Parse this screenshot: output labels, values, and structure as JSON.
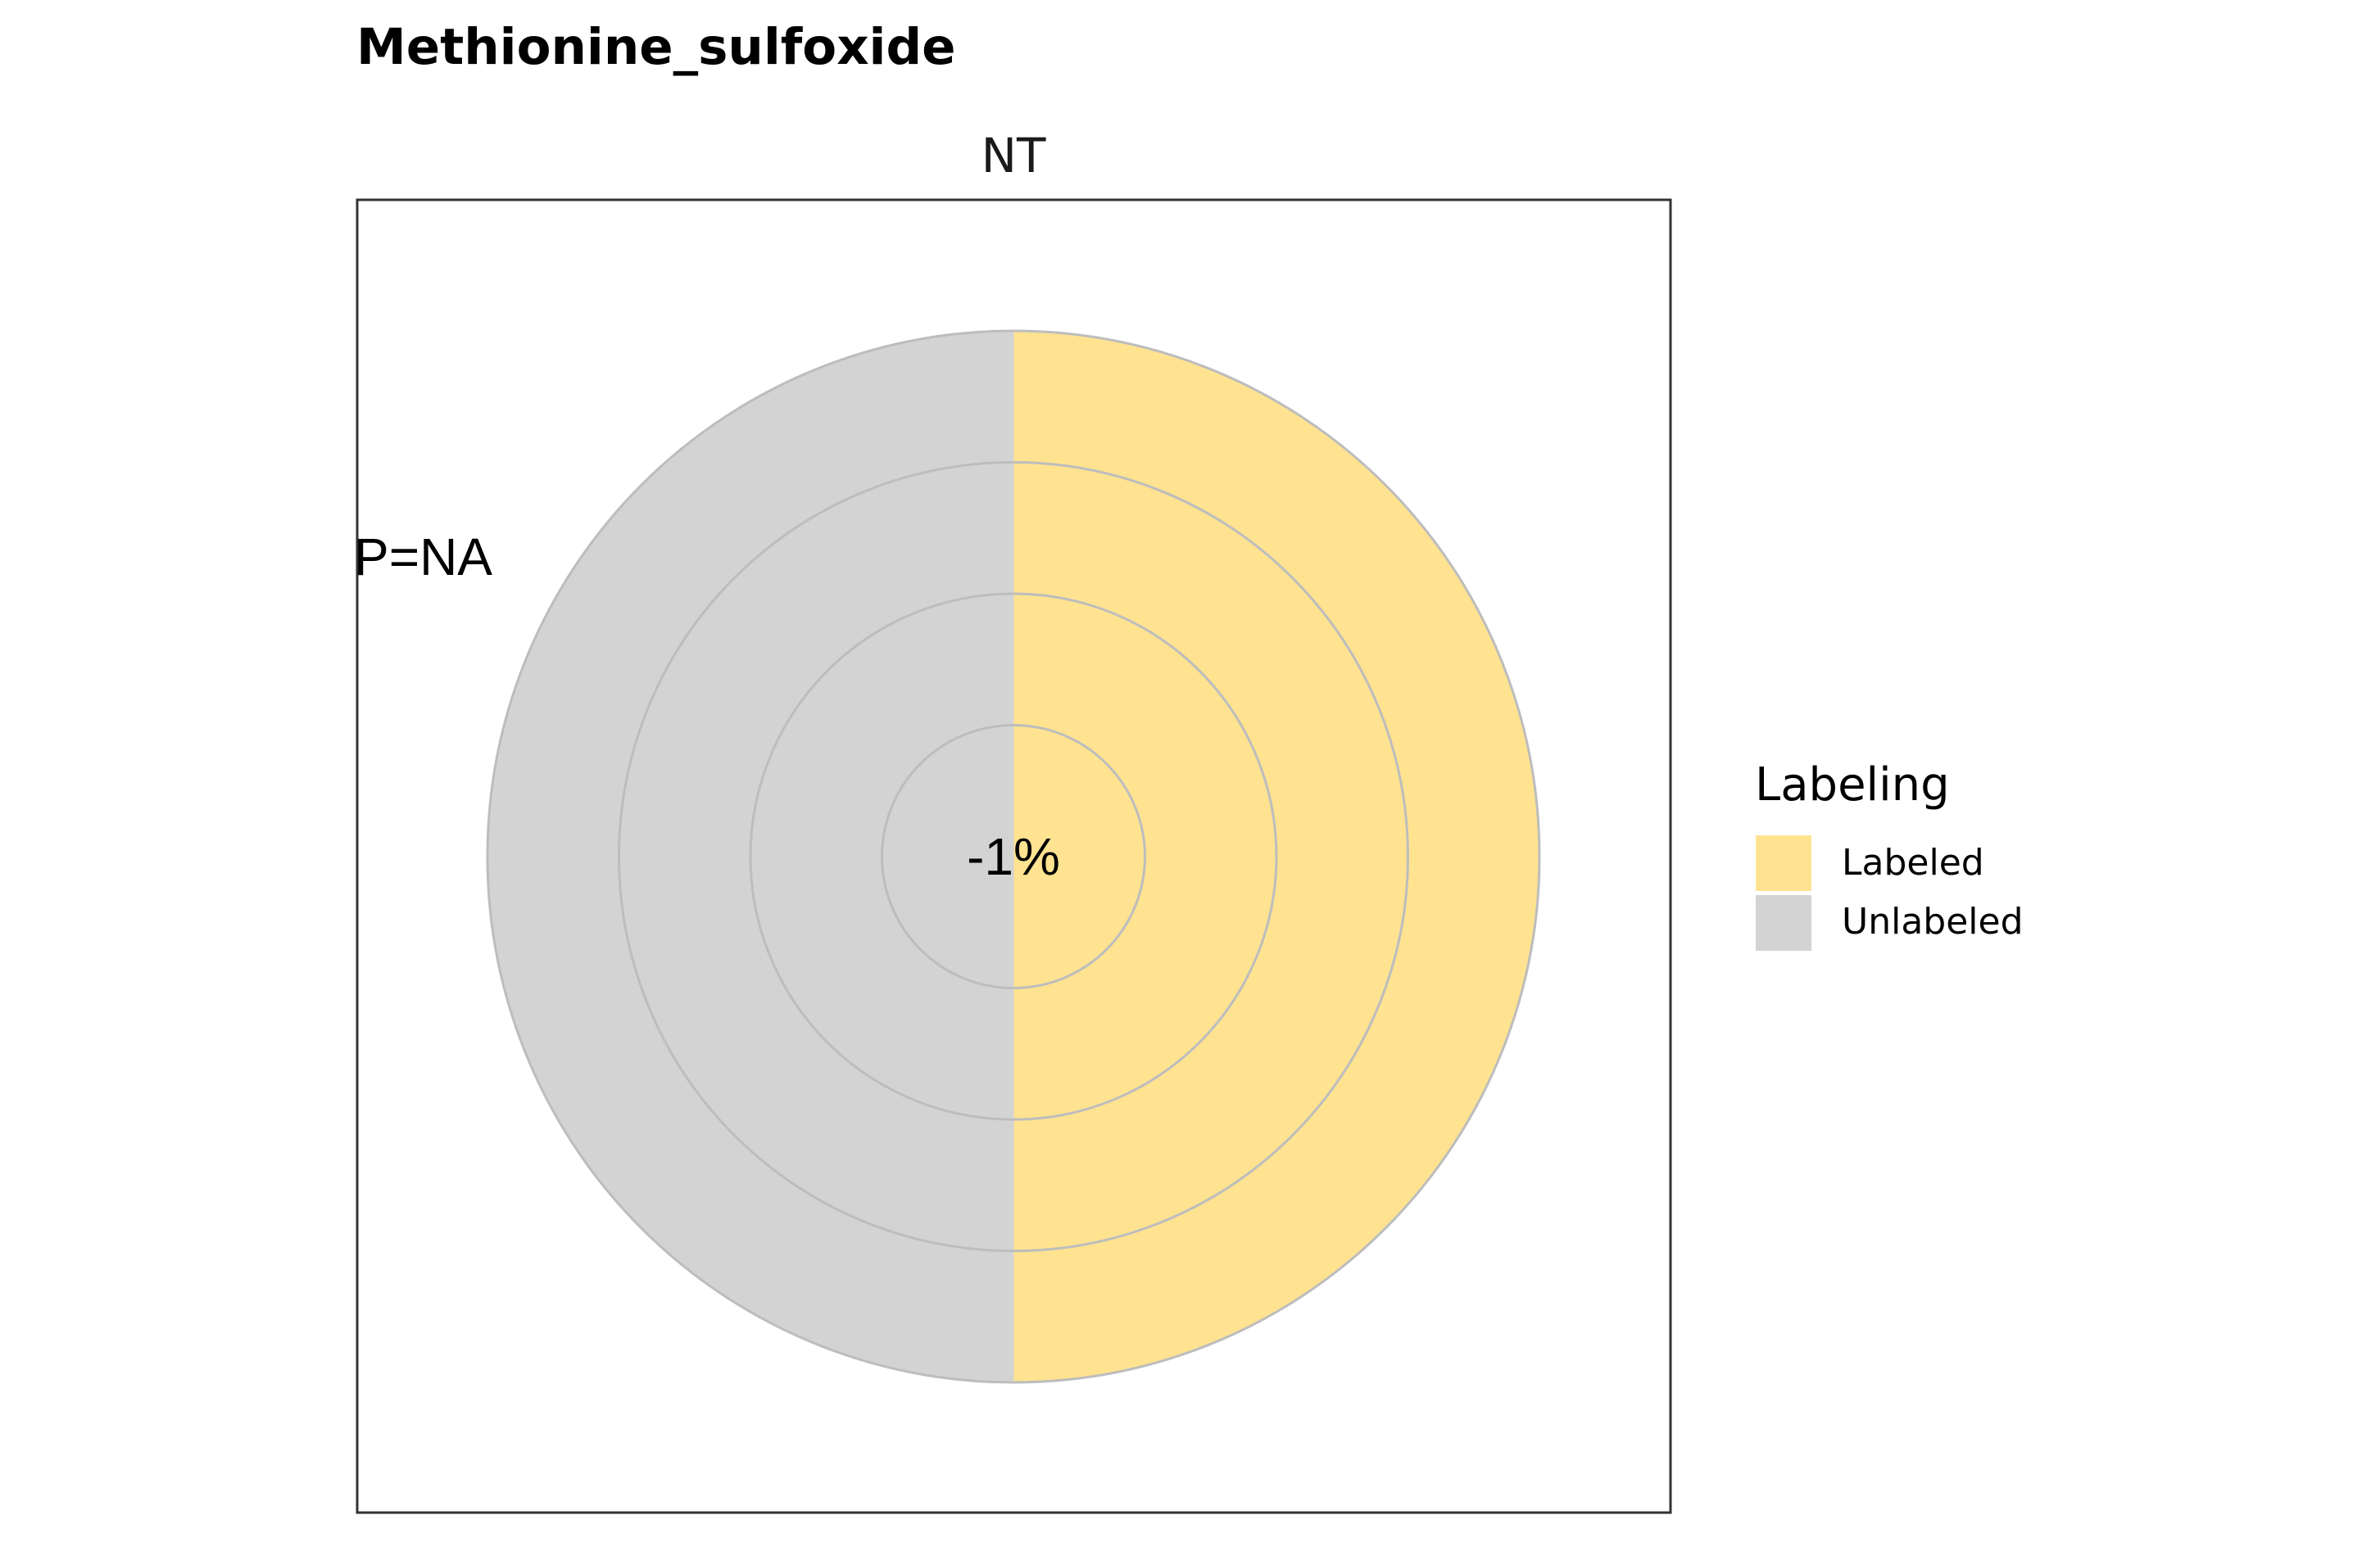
{
  "chart_data": {
    "type": "pie",
    "title": "Methionine_sulfoxide",
    "facet": "NT",
    "annotation_p": "P=NA",
    "center_label": "-1%",
    "slices": [
      {
        "name": "Labeled",
        "value": 50,
        "color": "#FFE391"
      },
      {
        "name": "Unlabeled",
        "value": 50,
        "color": "#D3D3D3"
      }
    ],
    "grid": true,
    "legend": {
      "title": "Labeling",
      "placement": "right",
      "items": [
        {
          "label": "Labeled",
          "color": "#FFE391"
        },
        {
          "label": "Unlabeled",
          "color": "#D3D3D3"
        }
      ]
    }
  }
}
